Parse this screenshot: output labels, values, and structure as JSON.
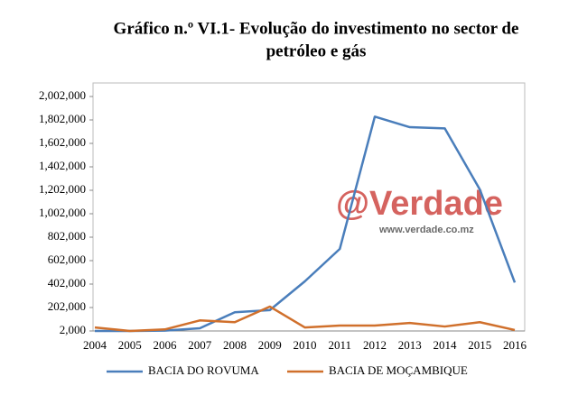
{
  "chart_data": {
    "type": "line",
    "title": [
      "Gráfico n.º VI.1- Evolução do investimento no  sector de",
      "petróleo e gás"
    ],
    "watermark": [
      "@Verdade",
      "www.verdade.co.mz"
    ],
    "categories": [
      "2004",
      "2005",
      "2006",
      "2007",
      "2008",
      "2009",
      "2010",
      "2011",
      "2012",
      "2013",
      "2014",
      "2015",
      "2016"
    ],
    "series": [
      {
        "name": "BACIA DO ROVUMA",
        "color": "#4a7ebb",
        "values": [
          2000,
          2000,
          5000,
          25000,
          162000,
          180000,
          425000,
          702000,
          1830000,
          1740000,
          1730000,
          1210000,
          415000
        ]
      },
      {
        "name": "BACIA DE MOÇAMBIQUE",
        "color": "#d0702c",
        "values": [
          32000,
          2000,
          15000,
          92000,
          77000,
          210000,
          32000,
          48000,
          48000,
          70000,
          40000,
          77000,
          10000
        ]
      }
    ],
    "ylim": [
      2000,
      2002000
    ],
    "yticks": [
      {
        "value": 2000,
        "label": "2,000"
      },
      {
        "value": 202000,
        "label": "202,000"
      },
      {
        "value": 402000,
        "label": "402,000"
      },
      {
        "value": 602000,
        "label": "602,000"
      },
      {
        "value": 802000,
        "label": "802,000"
      },
      {
        "value": 1002000,
        "label": "1,002,000"
      },
      {
        "value": 1202000,
        "label": "1,202,000"
      },
      {
        "value": 1402000,
        "label": "1,402,000"
      },
      {
        "value": 1602000,
        "label": "1,602,000"
      },
      {
        "value": 1802000,
        "label": "1,802,000"
      },
      {
        "value": 2002000,
        "label": "2,002,000"
      }
    ],
    "legend": "bottom"
  }
}
